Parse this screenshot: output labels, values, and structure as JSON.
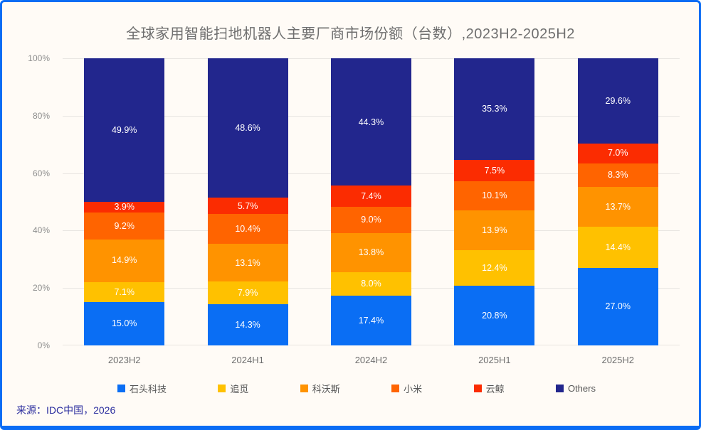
{
  "frame": {
    "source": "来源：IDC中国，2026",
    "accent_border_color": "#0B6CF4",
    "background_color": "#FFFBF6"
  },
  "chart_data": {
    "type": "bar",
    "stacked": true,
    "title": "全球家用智能扫地机器人主要厂商市场份额（台数）,2023H2-2025H2",
    "categories": [
      "2023H2",
      "2024H1",
      "2024H2",
      "2025H1",
      "2025H2"
    ],
    "series": [
      {
        "name": "石头科技",
        "color": "#0A6EF4",
        "values": [
          15.0,
          14.3,
          17.4,
          20.8,
          27.0
        ]
      },
      {
        "name": "追觅",
        "color": "#FFC100",
        "values": [
          7.1,
          7.9,
          8.0,
          12.4,
          14.4
        ]
      },
      {
        "name": "科沃斯",
        "color": "#FF9300",
        "values": [
          14.9,
          13.1,
          13.8,
          13.9,
          13.7
        ]
      },
      {
        "name": "小米",
        "color": "#FF6400",
        "values": [
          9.2,
          10.4,
          9.0,
          10.1,
          8.3
        ]
      },
      {
        "name": "云鲸",
        "color": "#FB2C01",
        "values": [
          3.9,
          5.7,
          7.4,
          7.5,
          7.0
        ]
      },
      {
        "name": "Others",
        "color": "#22268D",
        "values": [
          49.9,
          48.6,
          44.3,
          35.3,
          29.6
        ]
      }
    ],
    "y_ticks": [
      "0%",
      "20%",
      "40%",
      "60%",
      "80%",
      "100%"
    ],
    "ylim": [
      0,
      100
    ],
    "value_suffix": "%",
    "grid": true,
    "gridline_color": "#E8E5E1",
    "legend_position": "bottom"
  }
}
